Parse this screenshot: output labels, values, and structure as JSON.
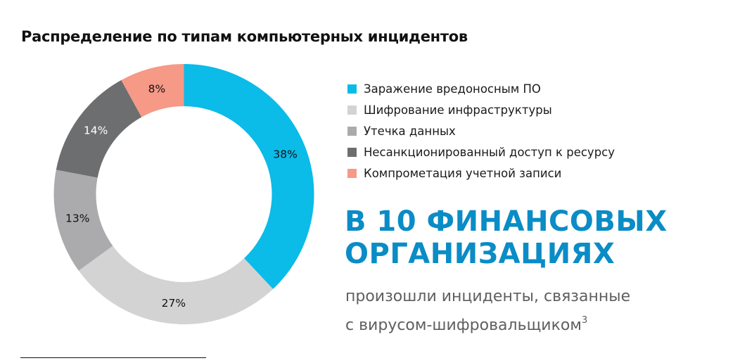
{
  "title": "Распределение по типам компьютерных инцидентов",
  "chart_data": {
    "type": "pie",
    "subtype": "donut",
    "title": "Распределение по типам компьютерных инцидентов",
    "categories": [
      "Заражение вредоносным ПО",
      "Шифрование инфраструктуры",
      "Утечка данных",
      "Несанкционированный доступ к ресурсу",
      "Компрометация учетной записи"
    ],
    "values": [
      38,
      27,
      13,
      14,
      8
    ],
    "labels": [
      "38%",
      "27%",
      "13%",
      "14%",
      "8%"
    ],
    "colors": [
      "#0bbbe8",
      "#d3d3d3",
      "#ababad",
      "#6d6e70",
      "#f69986"
    ],
    "label_colors": [
      "#111111",
      "#111111",
      "#111111",
      "#ffffff",
      "#111111"
    ],
    "start_angle": "12 o'clock, clockwise",
    "legend_position": "right"
  },
  "legend": [
    {
      "label": "Заражение вредоносным ПО",
      "color": "#0bbbe8"
    },
    {
      "label": "Шифрование инфраструктуры",
      "color": "#d3d3d3"
    },
    {
      "label": "Утечка данных",
      "color": "#ababad"
    },
    {
      "label": "Несанкционированный доступ к ресурсу",
      "color": "#6d6e70"
    },
    {
      "label": "Компрометация учетной записи",
      "color": "#f69986"
    }
  ],
  "callout": {
    "headline_line1": "В 10 ФИНАНСОВЫХ",
    "headline_line2": "ОРГАНИЗАЦИЯХ",
    "sub_line1": "произошли инциденты, связанные",
    "sub_line2": "с вирусом-шифровальщиком",
    "footnote_ref": "3",
    "accent_color": "#0a8cc6"
  }
}
